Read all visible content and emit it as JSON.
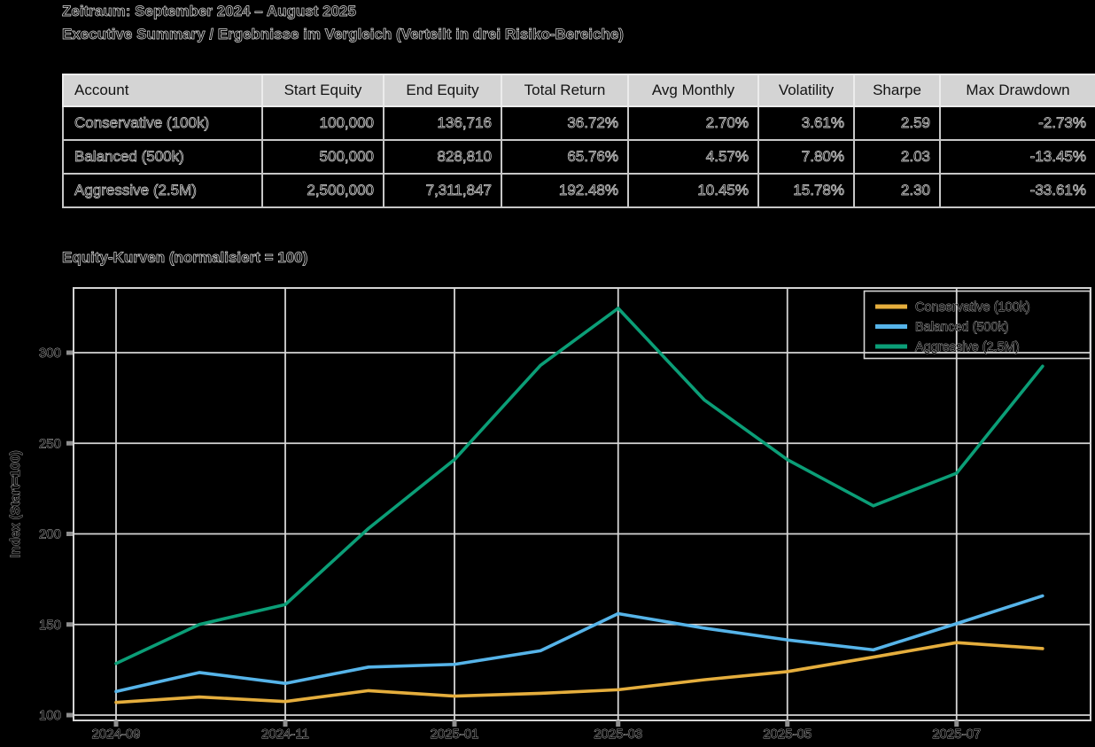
{
  "header": {
    "line1": "Zeitraum: September 2024 – August 2025",
    "line2": "Executive Summary / Ergebnisse im Vergleich (Verteilt in drei Risiko-Bereiche)"
  },
  "table": {
    "columns": [
      "Account",
      "Start Equity",
      "End Equity",
      "Total Return",
      "Avg Monthly",
      "Volatility",
      "Sharpe",
      "Max Drawdown"
    ],
    "rows": [
      [
        "Conservative (100k)",
        "100,000",
        "136,716",
        "36.72%",
        "2.70%",
        "3.61%",
        "2.59",
        "-2.73%"
      ],
      [
        "Balanced (500k)",
        "500,000",
        "828,810",
        "65.76%",
        "4.57%",
        "7.80%",
        "2.03",
        "-13.45%"
      ],
      [
        "Aggressive (2.5M)",
        "2,500,000",
        "7,311,847",
        "192.48%",
        "10.45%",
        "15.78%",
        "2.30",
        "-33.61%"
      ]
    ]
  },
  "chart_data": {
    "type": "line",
    "title": "Equity-Kurven (normalisiert = 100)",
    "xlabel": "",
    "ylabel": "Index (Start=100)",
    "x": [
      "2024-09",
      "2024-10",
      "2024-11",
      "2024-12",
      "2025-01",
      "2025-02",
      "2025-03",
      "2025-04",
      "2025-05",
      "2025-06",
      "2025-07",
      "2025-08"
    ],
    "xtick_labels": [
      "2024-09",
      "2024-11",
      "2025-01",
      "2025-03",
      "2025-05",
      "2025-07"
    ],
    "yticks": [
      100,
      150,
      200,
      250,
      300
    ],
    "ylim": [
      97,
      336
    ],
    "grid": true,
    "legend_position": "upper right",
    "series": [
      {
        "name": "Conservative (100k)",
        "color": "#E5AE3D",
        "values": [
          107,
          110,
          107.5,
          113.5,
          110.5,
          112,
          114,
          119.5,
          124,
          132,
          140,
          136.7
        ]
      },
      {
        "name": "Balanced (500k)",
        "color": "#56B4E9",
        "values": [
          113,
          123.5,
          117.5,
          126.5,
          128,
          135.5,
          156,
          148,
          141.5,
          136,
          150.5,
          165.8
        ]
      },
      {
        "name": "Aggressive (2.5M)",
        "color": "#0B9E77",
        "values": [
          128.5,
          150,
          161,
          203,
          241,
          293,
          324.5,
          274,
          241,
          215.5,
          233.5,
          292.5
        ]
      }
    ],
    "colors": {
      "grid": "#d6d6d6",
      "tick": "#8f8f8f",
      "table_header_bg": "#d4d4d4"
    }
  }
}
